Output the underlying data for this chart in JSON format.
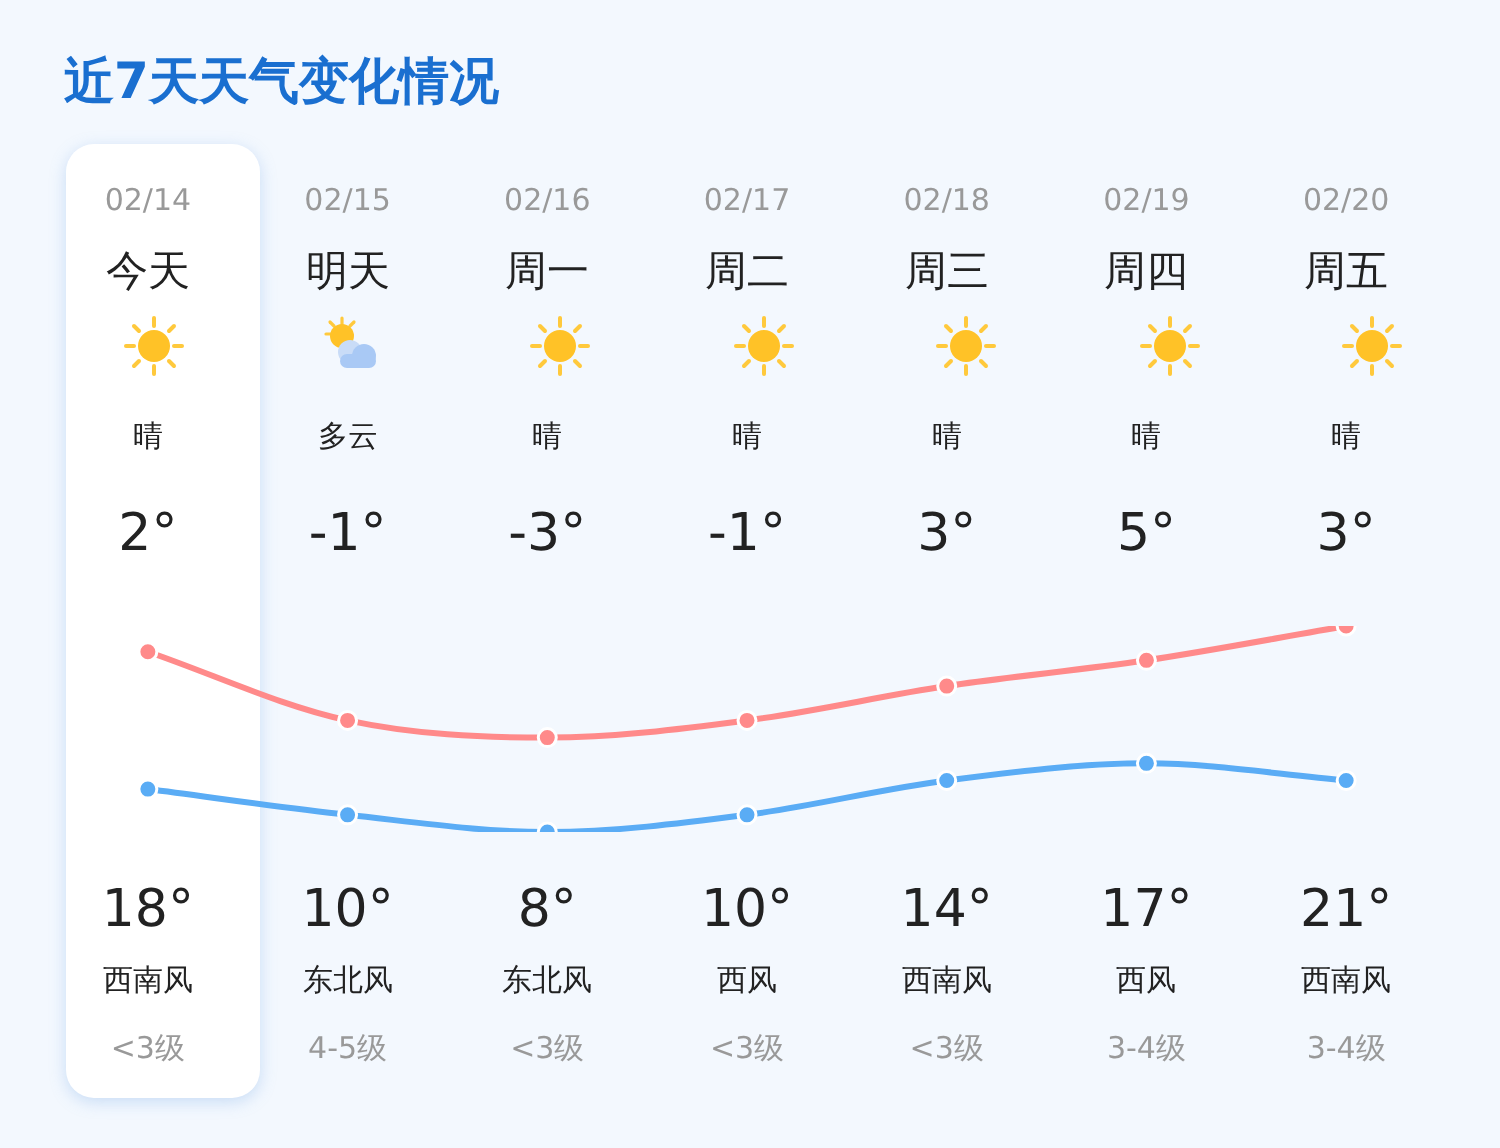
{
  "chart_data": {
    "type": "line",
    "title": "近7天天气变化情况",
    "categories": [
      "02/14",
      "02/15",
      "02/16",
      "02/17",
      "02/18",
      "02/19",
      "02/20"
    ],
    "series": [
      {
        "color": "#5aacf5",
        "values": [
          2,
          -1,
          -3,
          -1,
          3,
          5,
          3
        ],
        "value_labels": [
          "2°",
          "-1°",
          "-3°",
          "-1°",
          "3°",
          "5°",
          "3°"
        ]
      },
      {
        "color": "#ff8a8a",
        "values": [
          18,
          10,
          8,
          10,
          14,
          17,
          21
        ],
        "value_labels": [
          "18°",
          "10°",
          "8°",
          "10°",
          "14°",
          "17°",
          "21°"
        ]
      }
    ],
    "tick_labels": "x",
    "legend": false,
    "marker": "circle",
    "line_style": "solid",
    "annotations": [
      "今天",
      "明天",
      "周一",
      "周二",
      "周三",
      "周四",
      "周五",
      "晴",
      "多云",
      "晴",
      "晴",
      "晴",
      "晴",
      "晴",
      "西南风",
      "东北风",
      "东北风",
      "西风",
      "西南风",
      "西风",
      "西南风",
      "<3级",
      "4-5级",
      "<3级",
      "<3级",
      "<3级",
      "3-4级",
      "3-4级"
    ]
  }
}
